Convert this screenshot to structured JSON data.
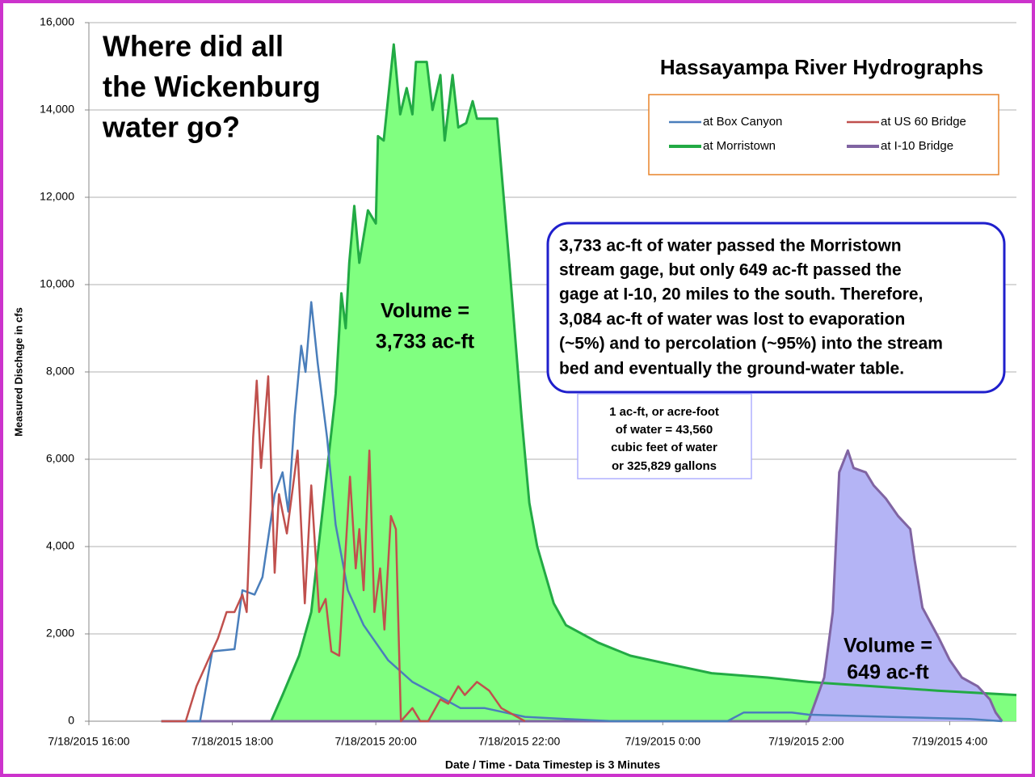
{
  "chart_data": {
    "type": "line",
    "title": "Hassayampa River Hydrographs",
    "x_label": "Date / Time - Data Timestep is 3 Minutes",
    "y_label": "Measured Dischage  in cfs",
    "xlim": [
      0,
      12.93
    ],
    "ylim": [
      0,
      16000
    ],
    "xticks": [
      {
        "value": 0,
        "label": "7/18/2015 16:00"
      },
      {
        "value": 2,
        "label": "7/18/2015 18:00"
      },
      {
        "value": 4,
        "label": "7/18/2015 20:00"
      },
      {
        "value": 6,
        "label": "7/18/2015 22:00"
      },
      {
        "value": 8,
        "label": "7/19/2015 0:00"
      },
      {
        "value": 10,
        "label": "7/19/2015 2:00"
      },
      {
        "value": 12,
        "label": "7/19/2015 4:00"
      }
    ],
    "yticks": [
      0,
      {
        "value": 2000,
        "label": "2,000"
      },
      {
        "value": 4000,
        "label": "4,000"
      },
      {
        "value": 6000,
        "label": "6,000"
      },
      {
        "value": 8000,
        "label": "8,000"
      },
      {
        "value": 10000,
        "label": "10,000"
      },
      {
        "value": 12000,
        "label": "12,000"
      },
      {
        "value": 14000,
        "label": "14,000"
      },
      {
        "value": 16000,
        "label": "16,000"
      }
    ],
    "grid": true,
    "legend": "upper-right",
    "series": [
      {
        "name": "at Box Canyon",
        "color": "#4a7ebb",
        "x": [
          1.01,
          1.55,
          1.72,
          2.03,
          2.14,
          2.31,
          2.42,
          2.59,
          2.7,
          2.78,
          2.87,
          2.96,
          3.02,
          3.1,
          3.19,
          3.32,
          3.44,
          3.61,
          3.83,
          4.17,
          4.51,
          4.85,
          5.18,
          5.52,
          6.08,
          6.65,
          7.32,
          8.9,
          9.13,
          9.8,
          10.03,
          11.15,
          12.28,
          12.73
        ],
        "values": [
          0,
          0,
          1600,
          1650,
          3000,
          2900,
          3300,
          5200,
          5700,
          4800,
          7000,
          8600,
          8000,
          9600,
          8200,
          6500,
          4500,
          3000,
          2200,
          1400,
          900,
          600,
          300,
          300,
          100,
          50,
          0,
          0,
          200,
          200,
          150,
          100,
          50,
          0
        ]
      },
      {
        "name": "at US 60 Bridge",
        "color": "#c0504d",
        "x": [
          1.01,
          1.35,
          1.5,
          1.69,
          1.8,
          1.92,
          2.03,
          2.14,
          2.2,
          2.29,
          2.34,
          2.4,
          2.5,
          2.59,
          2.65,
          2.76,
          2.91,
          3.01,
          3.1,
          3.21,
          3.3,
          3.38,
          3.49,
          3.64,
          3.72,
          3.77,
          3.83,
          3.91,
          3.98,
          4.06,
          4.12,
          4.21,
          4.28,
          4.35,
          4.51,
          4.62,
          4.73,
          4.9,
          5.01,
          5.15,
          5.24,
          5.41,
          5.58,
          5.75,
          5.97,
          6.08
        ],
        "values": [
          0,
          0,
          800,
          1500,
          1900,
          2500,
          2500,
          2900,
          2500,
          6500,
          7800,
          5800,
          7900,
          3400,
          5200,
          4300,
          6200,
          2700,
          5400,
          2500,
          2800,
          1600,
          1500,
          5600,
          3500,
          4400,
          3000,
          6200,
          2500,
          3500,
          2100,
          4700,
          4400,
          0,
          300,
          0,
          0,
          500,
          400,
          800,
          600,
          900,
          700,
          300,
          100,
          0
        ]
      },
      {
        "name": "at Morristown",
        "color": "#22aa44",
        "fill_color": "#80ff80",
        "x": [
          1.01,
          2.54,
          2.7,
          2.93,
          3.1,
          3.27,
          3.44,
          3.52,
          3.58,
          3.63,
          3.7,
          3.77,
          3.89,
          4.0,
          4.03,
          4.11,
          4.25,
          4.34,
          4.43,
          4.51,
          4.56,
          4.71,
          4.79,
          4.9,
          4.96,
          5.07,
          5.15,
          5.26,
          5.35,
          5.41,
          5.69,
          5.86,
          6.03,
          6.14,
          6.25,
          6.48,
          6.65,
          7.1,
          7.55,
          8.11,
          8.68,
          9.46,
          10.03,
          10.93,
          11.83,
          12.93
        ],
        "values": [
          0,
          0,
          600,
          1500,
          2500,
          5000,
          7500,
          9800,
          9000,
          10500,
          11800,
          10500,
          11700,
          11400,
          13400,
          13300,
          15500,
          13900,
          14500,
          13900,
          15100,
          15100,
          14000,
          14800,
          13300,
          14800,
          13600,
          13700,
          14200,
          13800,
          13800,
          10500,
          7000,
          5000,
          4000,
          2700,
          2200,
          1800,
          1500,
          1300,
          1100,
          1000,
          900,
          800,
          700,
          600
        ]
      },
      {
        "name": "at I-10 Bridge",
        "color": "#8064a2",
        "fill_color": "#b4b4f5",
        "x": [
          1.01,
          10.03,
          10.25,
          10.37,
          10.46,
          10.58,
          10.66,
          10.83,
          10.94,
          11.11,
          11.28,
          11.45,
          11.51,
          11.62,
          11.85,
          12.0,
          12.17,
          12.39,
          12.56,
          12.64,
          12.73
        ],
        "values": [
          0,
          0,
          1000,
          2500,
          5700,
          6200,
          5800,
          5700,
          5400,
          5100,
          4700,
          4400,
          3700,
          2600,
          1900,
          1400,
          1000,
          800,
          500,
          200,
          0
        ]
      }
    ],
    "annotations": [
      {
        "text": [
          "Where did all",
          "the Wickenburg",
          "water go?"
        ]
      },
      {
        "text": [
          "Volume =",
          "3,733 ac-ft"
        ]
      },
      {
        "text": [
          "Volume =",
          "649 ac-ft"
        ]
      },
      {
        "text": [
          "3,733 ac-ft of water passed the Morristown",
          "stream gage, but only 649 ac-ft passed the",
          "gage at I-10, 20 miles to the south. Therefore,",
          "3,084 ac-ft of water was lost to evaporation",
          "(~5%) and to percolation (~95%) into the stream",
          "bed and eventually the ground-water table."
        ]
      },
      {
        "text": [
          "1 ac-ft, or acre-foot",
          "of water = 43,560",
          "cubic feet of water",
          "or 325,829 gallons"
        ]
      }
    ]
  }
}
